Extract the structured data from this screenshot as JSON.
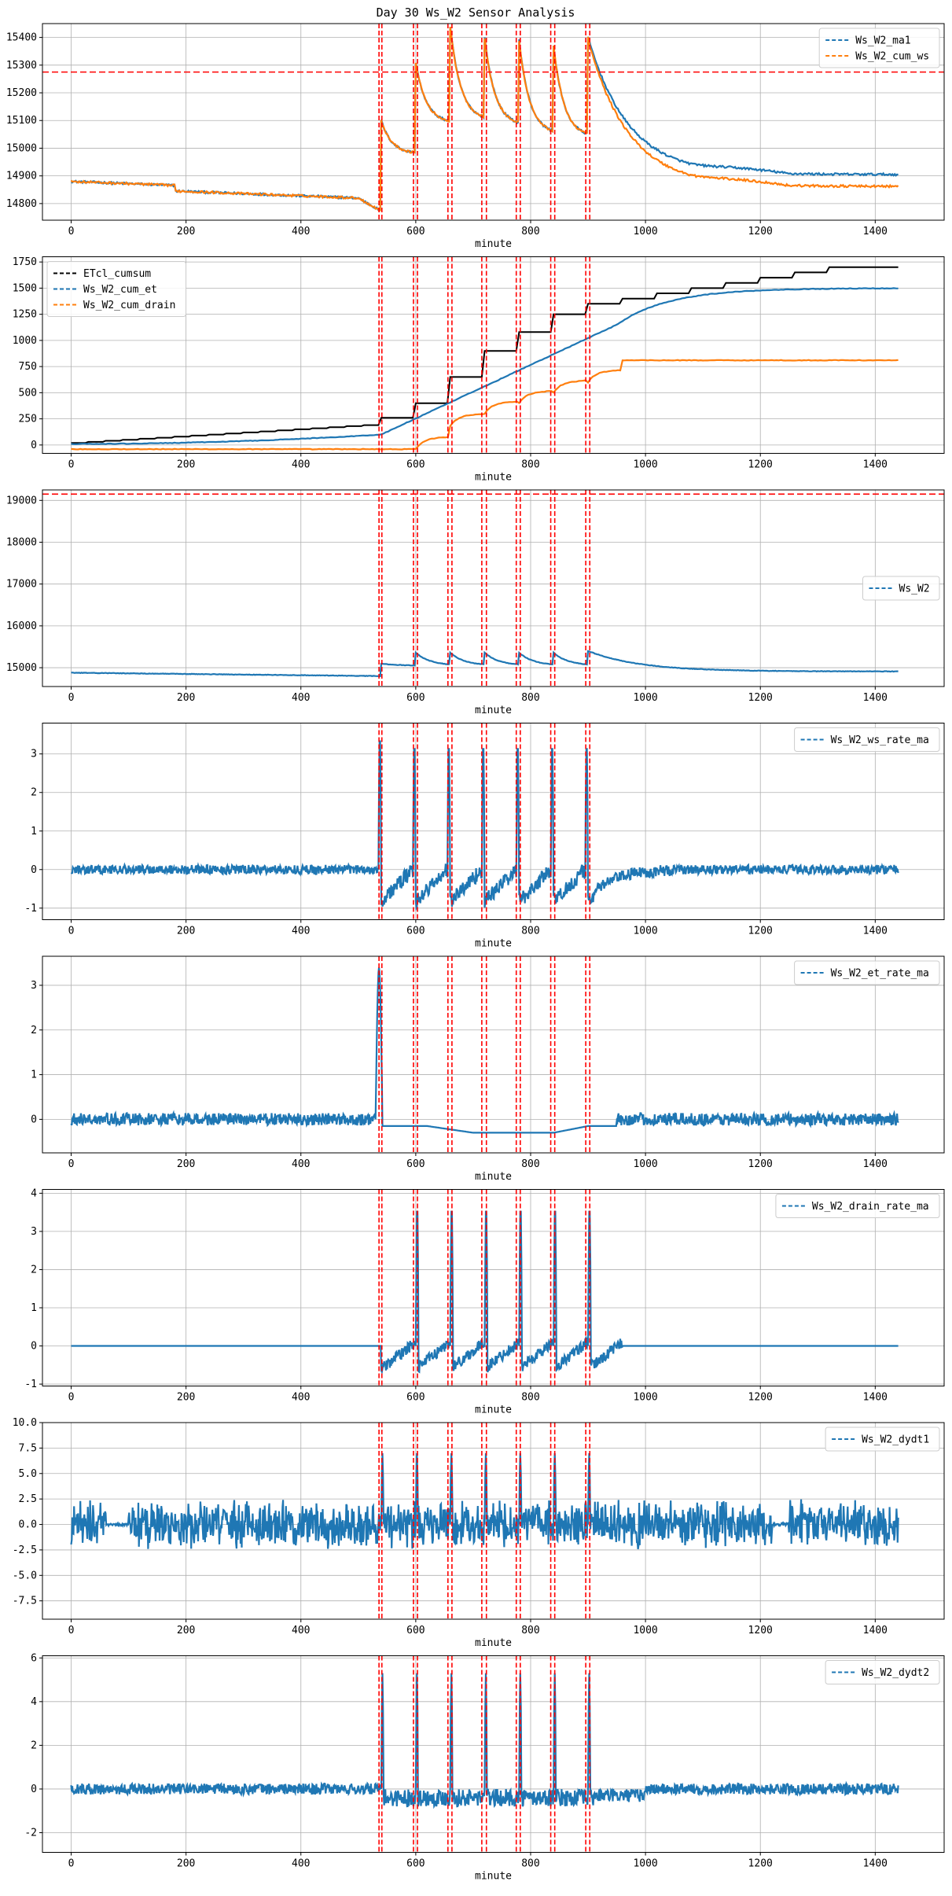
{
  "chart_data": {
    "title": "Day 30 Ws_W2 Sensor Analysis",
    "colors": {
      "blue": "#1f77b4",
      "orange": "#ff7f0e",
      "black": "#000000",
      "event_line": "#ff0000",
      "threshold": "#ff0000",
      "grid": "#b0b0b0"
    },
    "event_lines_minutes": [
      536,
      541,
      596,
      603,
      656,
      663,
      715,
      723,
      775,
      782,
      835,
      842,
      896,
      903
    ],
    "panels": [
      {
        "type": "line",
        "xlabel": "minute",
        "xlim": [
          -50,
          1520
        ],
        "ylim": [
          14740,
          15450
        ],
        "xticks": [
          0,
          200,
          400,
          600,
          800,
          1000,
          1200,
          1400
        ],
        "yticks": [
          14800,
          14900,
          15000,
          15100,
          15200,
          15300,
          15400
        ],
        "legend_loc": "upper-right",
        "hline": 15275,
        "series": [
          {
            "name": "Ws_W2_ma1",
            "color": "blue",
            "style": "dashed",
            "kind": "ma1"
          },
          {
            "name": "Ws_W2_cum_ws",
            "color": "orange",
            "style": "dashed",
            "kind": "cum_ws"
          }
        ]
      },
      {
        "type": "line",
        "xlabel": "minute",
        "xlim": [
          -50,
          1520
        ],
        "ylim": [
          -80,
          1800
        ],
        "xticks": [
          0,
          200,
          400,
          600,
          800,
          1000,
          1200,
          1400
        ],
        "yticks": [
          0,
          250,
          500,
          750,
          1000,
          1250,
          1500,
          1750
        ],
        "legend_loc": "upper-left",
        "series": [
          {
            "name": "ETcl_cumsum",
            "color": "black",
            "style": "dashed",
            "kind": "etcl"
          },
          {
            "name": "Ws_W2_cum_et",
            "color": "blue",
            "style": "dashed",
            "kind": "cum_et"
          },
          {
            "name": "Ws_W2_cum_drain",
            "color": "orange",
            "style": "dashed",
            "kind": "cum_drain"
          }
        ]
      },
      {
        "type": "line",
        "xlabel": "minute",
        "xlim": [
          -50,
          1520
        ],
        "ylim": [
          14550,
          19250
        ],
        "xticks": [
          0,
          200,
          400,
          600,
          800,
          1000,
          1200,
          1400
        ],
        "yticks": [
          15000,
          16000,
          17000,
          18000,
          19000
        ],
        "legend_loc": "center-right",
        "hline": 19150,
        "series": [
          {
            "name": "Ws_W2",
            "color": "blue",
            "style": "dashed",
            "kind": "ws"
          }
        ]
      },
      {
        "type": "line",
        "xlabel": "minute",
        "xlim": [
          -50,
          1520
        ],
        "ylim": [
          -1.3,
          3.8
        ],
        "xticks": [
          0,
          200,
          400,
          600,
          800,
          1000,
          1200,
          1400
        ],
        "yticks": [
          -1,
          0,
          1,
          2,
          3
        ],
        "legend_loc": "upper-right",
        "series": [
          {
            "name": "Ws_W2_ws_rate_ma",
            "color": "blue",
            "style": "dashed",
            "kind": "ws_rate"
          }
        ]
      },
      {
        "type": "line",
        "xlabel": "minute",
        "xlim": [
          -50,
          1520
        ],
        "ylim": [
          -0.75,
          3.65
        ],
        "xticks": [
          0,
          200,
          400,
          600,
          800,
          1000,
          1200,
          1400
        ],
        "yticks": [
          0,
          1,
          2,
          3
        ],
        "legend_loc": "upper-right",
        "series": [
          {
            "name": "Ws_W2_et_rate_ma",
            "color": "blue",
            "style": "dashed",
            "kind": "et_rate"
          }
        ]
      },
      {
        "type": "line",
        "xlabel": "minute",
        "xlim": [
          -50,
          1520
        ],
        "ylim": [
          -1.05,
          4.1
        ],
        "xticks": [
          0,
          200,
          400,
          600,
          800,
          1000,
          1200,
          1400
        ],
        "yticks": [
          -1,
          0,
          1,
          2,
          3,
          4
        ],
        "legend_loc": "upper-right",
        "series": [
          {
            "name": "Ws_W2_drain_rate_ma",
            "color": "blue",
            "style": "dashed",
            "kind": "drain_rate"
          }
        ]
      },
      {
        "type": "line",
        "xlabel": "minute",
        "xlim": [
          -50,
          1520
        ],
        "ylim": [
          -9.3,
          10.0
        ],
        "xticks": [
          0,
          200,
          400,
          600,
          800,
          1000,
          1200,
          1400
        ],
        "yticks": [
          -7.5,
          -5.0,
          -2.5,
          0.0,
          2.5,
          5.0,
          7.5,
          10.0
        ],
        "ytick_labels": [
          "-7.5",
          "-5.0",
          "-2.5",
          "0.0",
          "2.5",
          "5.0",
          "7.5",
          "10.0"
        ],
        "legend_loc": "upper-right",
        "series": [
          {
            "name": "Ws_W2_dydt1",
            "color": "blue",
            "style": "dashed",
            "kind": "dydt1"
          }
        ]
      },
      {
        "type": "line",
        "xlabel": "minute",
        "xlim": [
          -50,
          1520
        ],
        "ylim": [
          -2.9,
          6.1
        ],
        "xticks": [
          0,
          200,
          400,
          600,
          800,
          1000,
          1200,
          1400
        ],
        "yticks": [
          -2,
          0,
          2,
          4,
          6
        ],
        "legend_loc": "upper-right",
        "series": [
          {
            "name": "Ws_W2_dydt2",
            "color": "blue",
            "style": "dashed",
            "kind": "dydt2"
          }
        ]
      }
    ]
  }
}
